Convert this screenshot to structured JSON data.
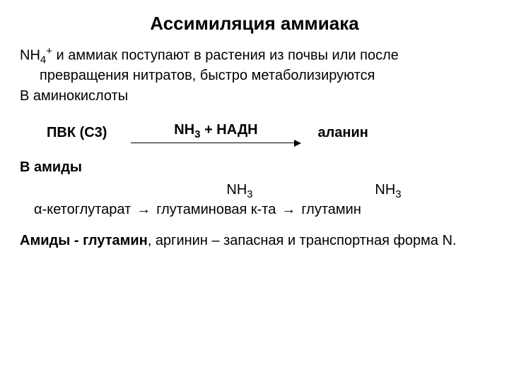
{
  "title": "Ассимиляция аммиака",
  "p1_line1": "NH",
  "p1_sub1": "4",
  "p1_sup1": "+",
  "p1_cont": " и аммиак поступают в растения из почвы или после превращения нитратов, быстро метаболизируются",
  "p2": "В аминокислоты",
  "r1_left": "ПВК (С3)",
  "r1_over_a": "NH",
  "r1_over_sub": "3",
  "r1_over_b": " + НАДН",
  "r1_right": "аланин",
  "p3": "В амиды",
  "r2_nh_a": "NH",
  "r2_nh_sub": "3",
  "r2_item1": "α-кетоглутарат",
  "r2_arrow": "→",
  "r2_item2": "глутаминовая к-та",
  "r2_item3": "глутамин",
  "p4_a": "Амиды - глутамин",
  "p4_b": ", аргинин – запасная и транспортная форма N.",
  "colors": {
    "text": "#000000",
    "background": "#ffffff"
  },
  "fonts": {
    "title_size": 26,
    "body_size": 20,
    "family": "Arial"
  }
}
